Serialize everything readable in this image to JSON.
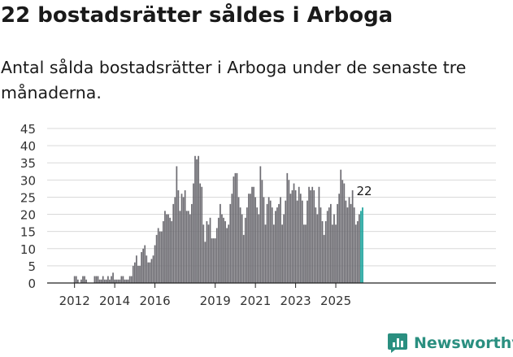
{
  "title": "22 bostadsrätter såldes i Arboga",
  "subtitle": "Antal sålda bostadsrätter i Arboga under de senaste tre månaderna.",
  "brand": "Newsworthy",
  "colors": {
    "bar": "#6e6d73",
    "highlight": "#1ba39c",
    "grid": "#d9d9d9",
    "brand": "#2a8f80"
  },
  "chart_data": {
    "type": "bar",
    "title": "Antal sålda bostadsrätter i Arboga",
    "xlabel": "",
    "ylabel": "",
    "ylim": [
      0,
      45
    ],
    "yticks": [
      0,
      5,
      10,
      15,
      20,
      25,
      30,
      35,
      40,
      45
    ],
    "xticks": [
      "2012",
      "2014",
      "2016",
      "2019",
      "2021",
      "2023",
      "2025"
    ],
    "x_start": "2011-10",
    "highlight_last": 2,
    "annotation": {
      "text": "22",
      "target": "last"
    },
    "values": [
      0,
      0,
      0,
      2,
      2,
      1,
      0,
      1,
      2,
      2,
      1,
      0,
      0,
      0,
      0,
      2,
      2,
      2,
      1,
      1,
      2,
      1,
      1,
      2,
      1,
      2,
      3,
      1,
      1,
      1,
      1,
      2,
      2,
      1,
      1,
      1,
      2,
      2,
      5,
      6,
      8,
      5,
      5,
      9,
      10,
      11,
      8,
      6,
      6,
      7,
      8,
      11,
      14,
      16,
      15,
      15,
      18,
      21,
      20,
      20,
      19,
      18,
      23,
      25,
      34,
      27,
      21,
      26,
      25,
      27,
      21,
      21,
      20,
      23,
      29,
      37,
      36,
      37,
      29,
      28,
      17,
      12,
      18,
      17,
      19,
      13,
      13,
      13,
      16,
      19,
      23,
      20,
      19,
      18,
      16,
      17,
      23,
      26,
      31,
      32,
      32,
      25,
      22,
      20,
      14,
      19,
      22,
      26,
      26,
      28,
      28,
      25,
      22,
      20,
      34,
      30,
      25,
      17,
      23,
      25,
      24,
      22,
      17,
      21,
      22,
      23,
      25,
      17,
      20,
      24,
      32,
      30,
      26,
      27,
      29,
      27,
      24,
      28,
      26,
      24,
      17,
      17,
      24,
      28,
      27,
      28,
      27,
      22,
      20,
      28,
      22,
      18,
      14,
      18,
      21,
      22,
      23,
      17,
      20,
      17,
      23,
      26,
      33,
      30,
      29,
      24,
      22,
      25,
      23,
      27,
      22,
      17,
      18,
      20,
      21,
      22
    ]
  }
}
